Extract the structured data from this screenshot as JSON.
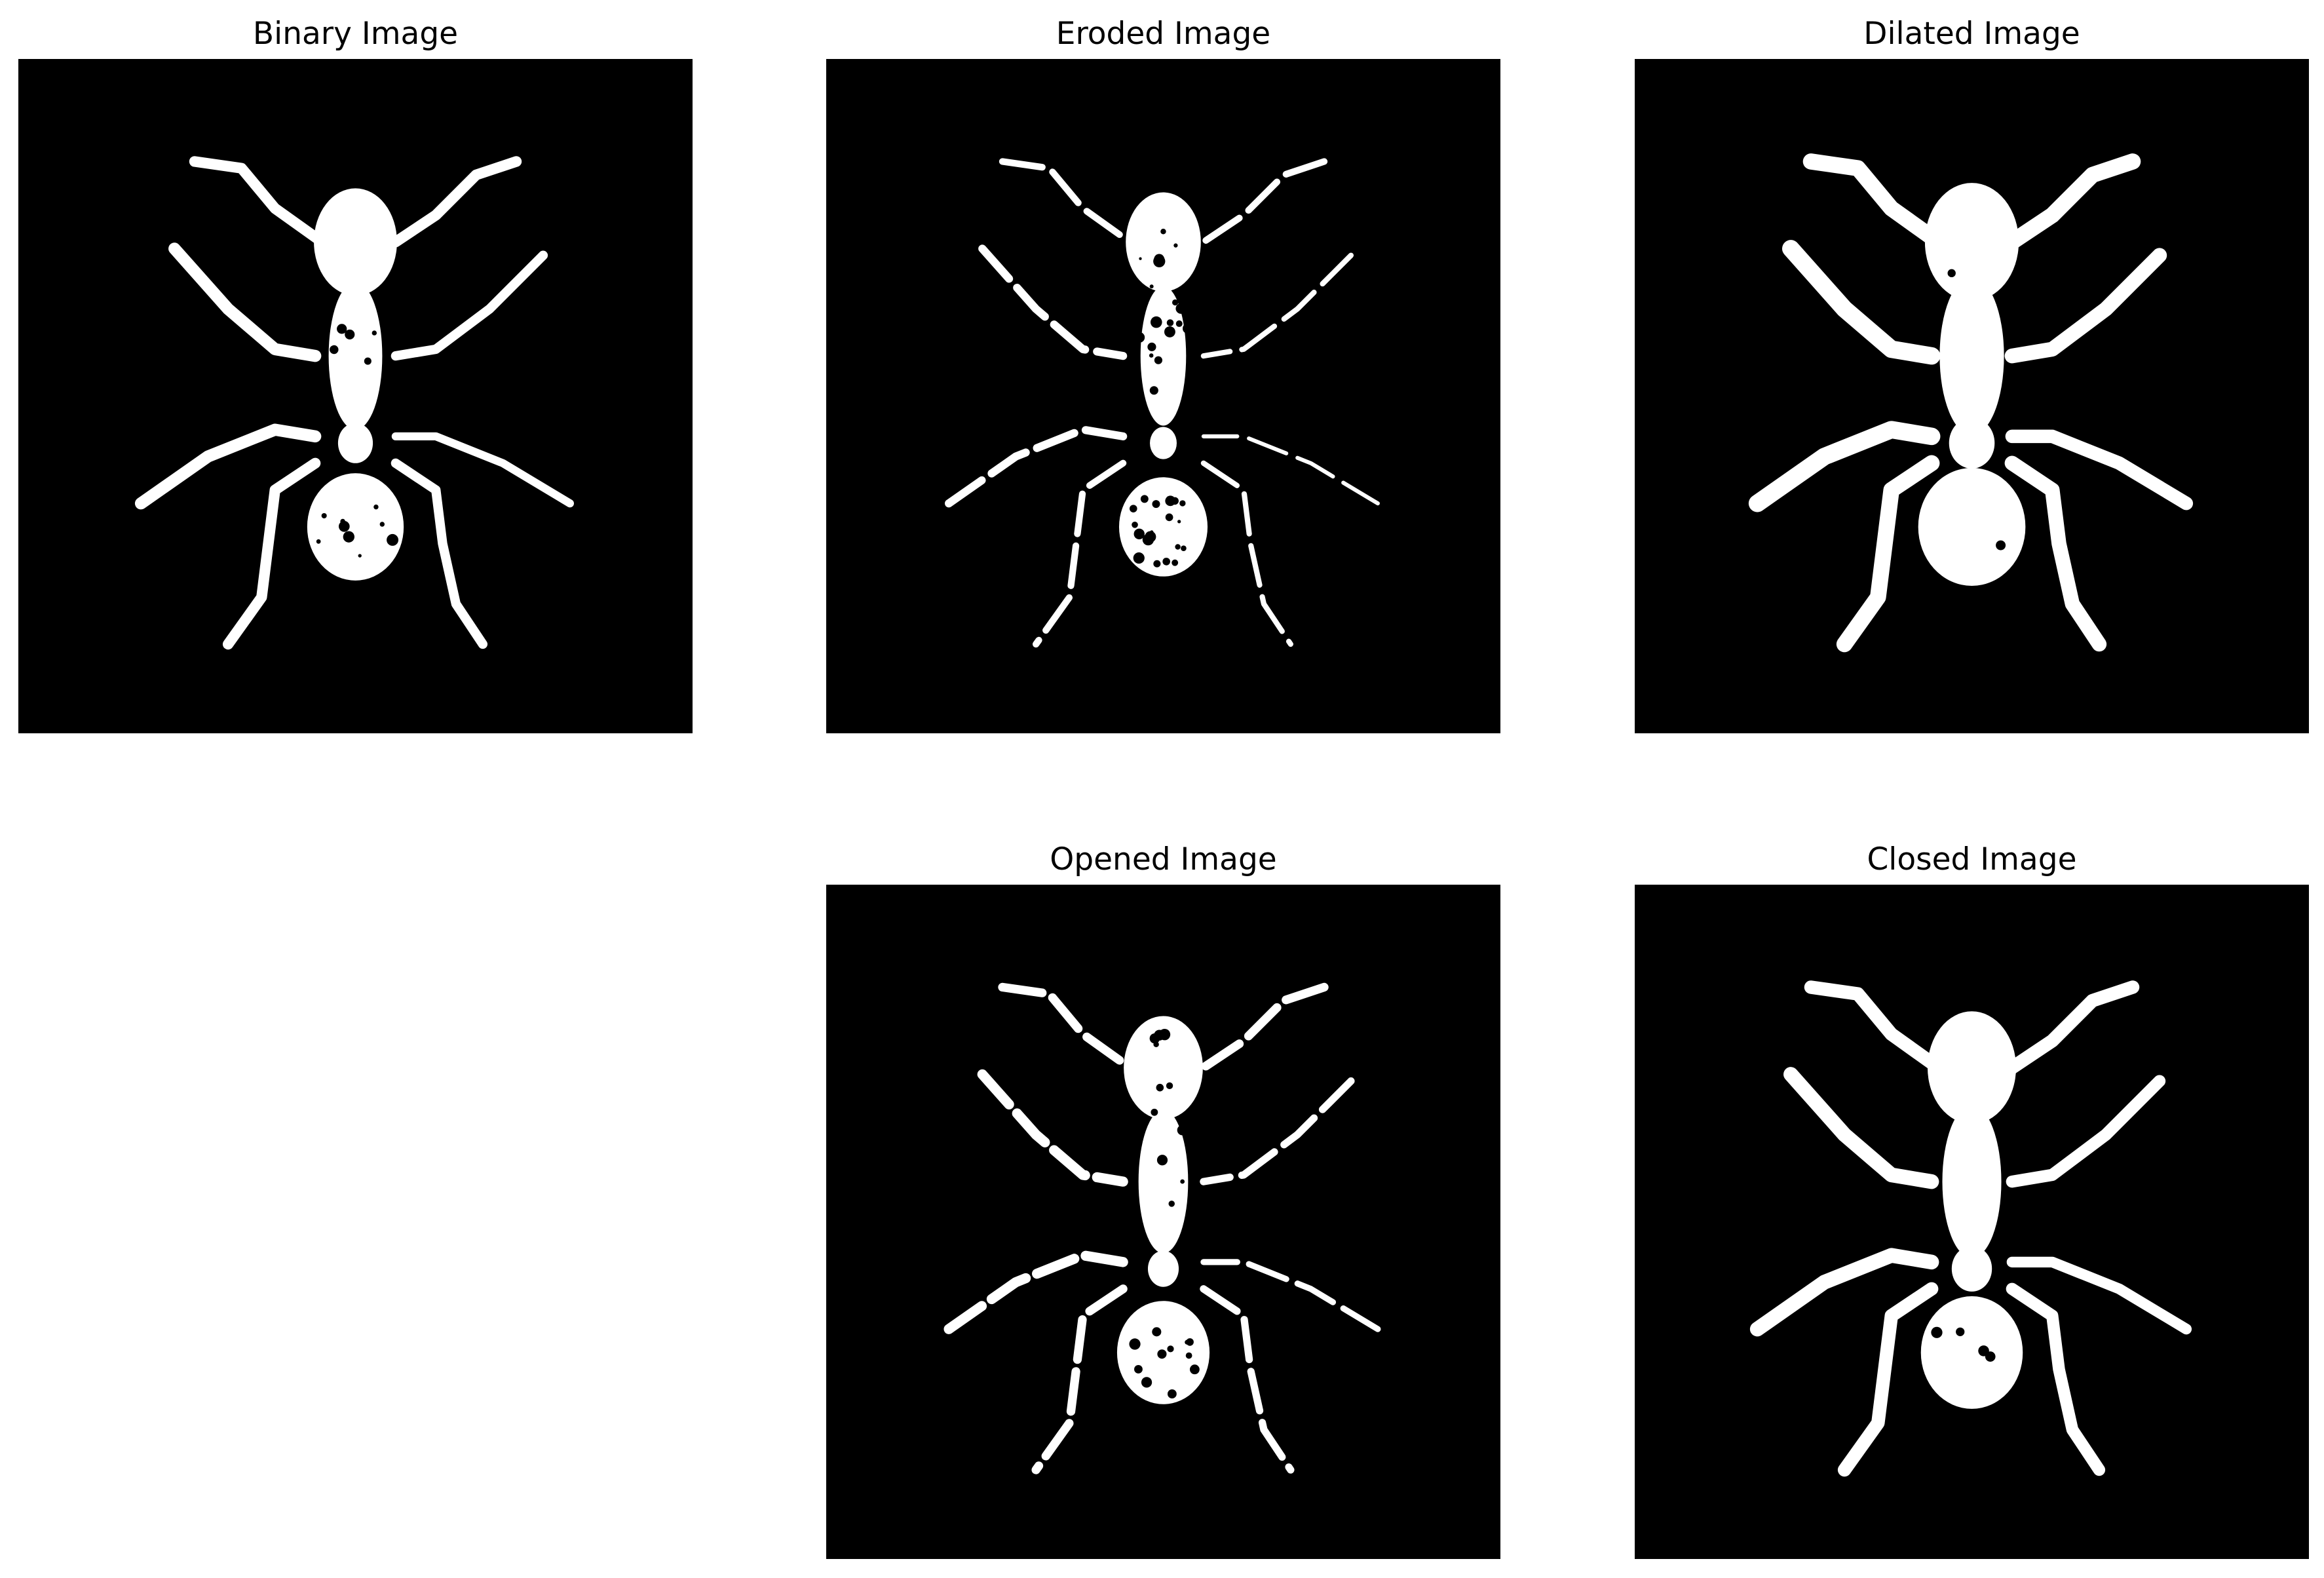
{
  "figure": {
    "panels": [
      {
        "id": "binary",
        "title": "Binary Image",
        "variant": "binary"
      },
      {
        "id": "eroded",
        "title": "Eroded Image",
        "variant": "eroded"
      },
      {
        "id": "dilated",
        "title": "Dilated Image",
        "variant": "dilated"
      },
      {
        "id": "opened",
        "title": "Opened Image",
        "variant": "opened"
      },
      {
        "id": "closed",
        "title": "Closed Image",
        "variant": "closed"
      }
    ],
    "colors": {
      "background": "#000000",
      "foreground": "#ffffff",
      "canvas": "#ffffff"
    }
  }
}
